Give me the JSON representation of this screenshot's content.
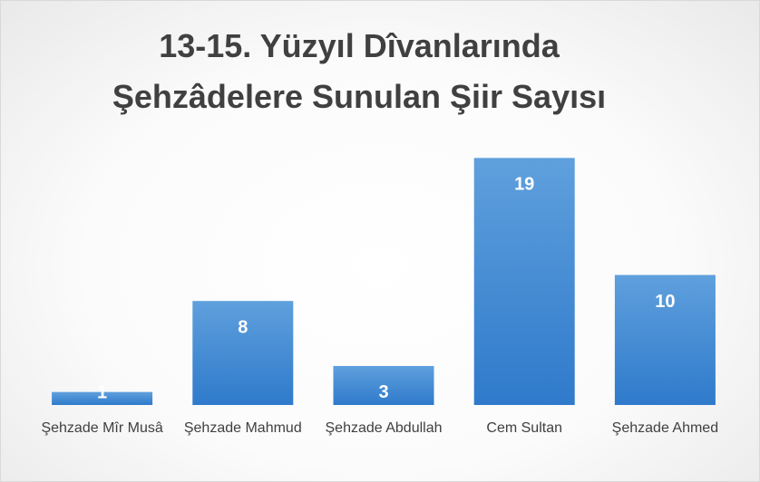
{
  "chart_data": {
    "type": "bar",
    "title": "13-15. Yüzyıl Dîvanlarında Şehzâdelere Sunulan Şiir Sayısı",
    "categories": [
      "Şehzade Mîr Musâ",
      "Şehzade Mahmud",
      "Şehzade Abdullah",
      "Cem Sultan",
      "Şehzade Ahmed"
    ],
    "values": [
      1,
      8,
      3,
      19,
      10
    ],
    "color": "#4a8fd6",
    "ylim": [
      0,
      20
    ]
  }
}
